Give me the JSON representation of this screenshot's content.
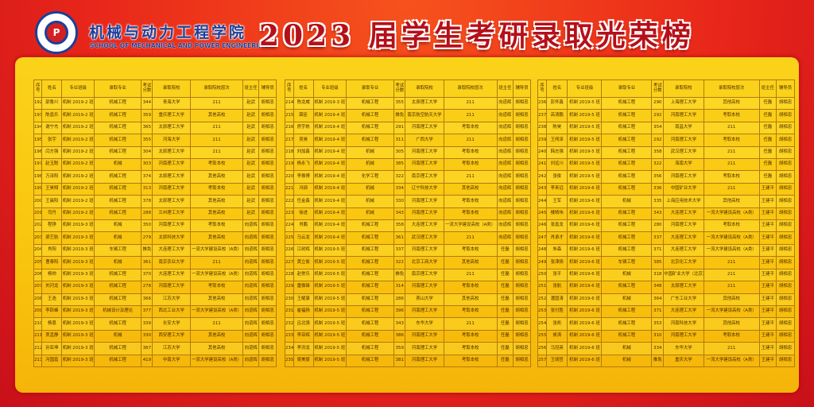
{
  "header": {
    "school_cn": "机械与动力工程学院",
    "school_en": "SCHOOL OF MECHANICAL AND POWER ENGINEERING",
    "title": "2023 届学生考研录取光荣榜",
    "logo_text": "机械与动力工程学院"
  },
  "colors": {
    "background": "#e8261a",
    "panel": "#fbd21a",
    "title": "#b5101a",
    "school_name": "#1b3f9a"
  },
  "columns": [
    "序号",
    "姓名",
    "专业班级",
    "录取专业",
    "考试分数",
    "录取院校",
    "录取院校层次",
    "班主任",
    "辅导员"
  ],
  "tables": [
    [
      [
        "192",
        "邵鲁川",
        "机制 2019-2 班",
        "机械工程",
        "344",
        "青海大学",
        "211",
        "赵武",
        "胡相忠"
      ],
      [
        "193",
        "陈嘉乐",
        "机制 2019-2 班",
        "机械工程",
        "359",
        "重庆理工大学",
        "其他高校",
        "赵武",
        "胡相忠"
      ],
      [
        "194",
        "谢宁杰",
        "机制 2019-2 班",
        "机械工程",
        "365",
        "太原理工大学",
        "211",
        "赵武",
        "胡相忠"
      ],
      [
        "195",
        "张宇",
        "机制 2019-2 班",
        "机械工程",
        "355",
        "河海大学",
        "211",
        "赵武",
        "胡相忠"
      ],
      [
        "196",
        "闫方强",
        "机制 2019-2 班",
        "机械工程",
        "304",
        "太原理工大学",
        "211",
        "赵武",
        "胡相忠"
      ],
      [
        "197",
        "赵玉聪",
        "机制 2019-2 班",
        "机械",
        "303",
        "河南理工大学",
        "考取本校",
        "赵武",
        "胡相忠"
      ],
      [
        "198",
        "万泽阳",
        "机制 2019-2 班",
        "机械工程",
        "374",
        "太原理工大学",
        "其他高校",
        "赵武",
        "胡相忠"
      ],
      [
        "199",
        "王昊翔",
        "机制 2019-2 班",
        "机械工程",
        "313",
        "河南理工大学",
        "考取本校",
        "赵武",
        "胡相忠"
      ],
      [
        "200",
        "王晨阳",
        "机制 2019-2 班",
        "机械工程",
        "378",
        "太原理工大学",
        "其他高校",
        "赵武",
        "胡相忠"
      ],
      [
        "201",
        "司丹",
        "机制 2019-2 班",
        "机械工程",
        "288",
        "兰州理工大学",
        "其他高校",
        "赵武",
        "胡相忠"
      ],
      [
        "202",
        "程铮",
        "机制 2019-3 班",
        "机械",
        "350",
        "河南理工大学",
        "考取本校",
        "向道辉",
        "胡相忠"
      ],
      [
        "203",
        "梁艺航",
        "机制 2019-3 班",
        "机械",
        "279",
        "太原科技大学",
        "其他高校",
        "向道辉",
        "胡相忠"
      ],
      [
        "204",
        "肖阳",
        "机制 2019-3 班",
        "车辆工程",
        "推免",
        "大连理工大学",
        "一流大学建设高校（A类）",
        "向道辉",
        "胡相忠"
      ],
      [
        "205",
        "曹泰阳",
        "机制 2019-3 班",
        "机械",
        "361",
        "南京农业大学",
        "211",
        "向道辉",
        "胡相忠"
      ],
      [
        "206",
        "杨帅",
        "机制 2019-3 班",
        "机械工程",
        "370",
        "大连理工大学",
        "一流大学建设高校（A类）",
        "向道辉",
        "胡相忠"
      ],
      [
        "207",
        "刘河龙",
        "机制 2019-3 班",
        "机械工程",
        "278",
        "河南理工大学",
        "考取本校",
        "向道辉",
        "胡相忠"
      ],
      [
        "208",
        "王浩",
        "机制 2019-3 班",
        "机械工程",
        "366",
        "江苏大学",
        "其他高校",
        "向道辉",
        "胡相忠"
      ],
      [
        "209",
        "李跃峰",
        "机制 2019-3 班",
        "机械设计及理论",
        "377",
        "西北工业大学",
        "一流大学建设高校（A类）",
        "向道辉",
        "胡相忠"
      ],
      [
        "210",
        "杨恩",
        "机制 2019-3 班",
        "机械工程",
        "339",
        "长安大学",
        "211",
        "向道辉",
        "胡相忠"
      ],
      [
        "211",
        "贾孟静",
        "机制 2019-3 班",
        "机械",
        "330",
        "西安理工大学",
        "其他高校",
        "向道辉",
        "胡相忠"
      ],
      [
        "212",
        "孙亚坤",
        "机制 2019-3 班",
        "机械工程",
        "367",
        "江苏大学",
        "其他高校",
        "向道辉",
        "胡相忠"
      ],
      [
        "213",
        "冯国嘉",
        "机制 2019-3 班",
        "机械工程",
        "419",
        "中南大学",
        "一流大学建设高校（A类）",
        "向道辉",
        "胡相忠"
      ]
    ],
    [
      [
        "214",
        "陈龙威",
        "机制 2019-3 班",
        "机械工程",
        "355",
        "太原理工大学",
        "211",
        "向道辉",
        "胡相忠"
      ],
      [
        "215",
        "薛臣",
        "机制 2019-4 班",
        "机械工程",
        "推免",
        "南京航空航天大学",
        "211",
        "向道辉",
        "胡相忠"
      ],
      [
        "216",
        "房宇栋",
        "机制 2019-4 班",
        "机械工程",
        "291",
        "河南理工大学",
        "考取本校",
        "向道辉",
        "胡相忠"
      ],
      [
        "217",
        "吴昊",
        "机制 2019-4 班",
        "机械工程",
        "311",
        "广西大学",
        "211",
        "向道辉",
        "胡相忠"
      ],
      [
        "218",
        "刘加鑫",
        "机制 2019-4 班",
        "机械",
        "305",
        "河南理工大学",
        "考取本校",
        "向道辉",
        "胡相忠"
      ],
      [
        "219",
        "杨永飞",
        "机制 2019-4 班",
        "机械",
        "385",
        "河南理工大学",
        "考取本校",
        "向道辉",
        "胡相忠"
      ],
      [
        "220",
        "李振博",
        "机制 2019-4 班",
        "化学工程",
        "322",
        "南京理工大学",
        "211",
        "向道辉",
        "胡相忠"
      ],
      [
        "221",
        "冯硕",
        "机制 2019-4 班",
        "机械",
        "334",
        "辽宁科技大学",
        "其他高校",
        "向道辉",
        "胡相忠"
      ],
      [
        "222",
        "任金鑫",
        "机制 2019-4 班",
        "机械",
        "330",
        "河南理工大学",
        "考取本校",
        "向道辉",
        "胡相忠"
      ],
      [
        "223",
        "徐进",
        "机制 2019-4 班",
        "机械",
        "343",
        "河南理工大学",
        "考取本校",
        "向道辉",
        "胡相忠"
      ],
      [
        "224",
        "肖鹏",
        "机制 2019-4 班",
        "机械工程",
        "358",
        "大连理工大学",
        "一流大学建设高校（A类）",
        "向道辉",
        "胡相忠"
      ],
      [
        "225",
        "马云龙",
        "机制 2019-4 班",
        "机械工程",
        "361",
        "武汉理工大学",
        "211",
        "向道辉",
        "胡相忠"
      ],
      [
        "226",
        "江树辉",
        "机制 2019-5 班",
        "机械工程",
        "337",
        "河南理工大学",
        "考取本校",
        "任磊",
        "胡相忠"
      ],
      [
        "227",
        "黄立俊",
        "机制 2019-5 班",
        "机械工程",
        "322",
        "北京工商大学",
        "其他高校",
        "任磊",
        "胡相忠"
      ],
      [
        "228",
        "赵常乐",
        "机制 2019-5 班",
        "机械工程",
        "推免",
        "南京理工大学",
        "211",
        "任磊",
        "胡相忠"
      ],
      [
        "229",
        "雷振锋",
        "机制 2019-5 班",
        "机械工程",
        "314",
        "河南理工大学",
        "考取本校",
        "任磊",
        "胡相忠"
      ],
      [
        "230",
        "王耀康",
        "机制 2019-5 班",
        "机械工程",
        "286",
        "燕山大学",
        "其他高校",
        "任磊",
        "胡相忠"
      ],
      [
        "231",
        "崔福扬",
        "机制 2019-5 班",
        "机械工程",
        "396",
        "河南理工大学",
        "考取本校",
        "任磊",
        "胡相忠"
      ],
      [
        "232",
        "吕北强",
        "机制 2019-5 班",
        "机械工程",
        "343",
        "东华大学",
        "211",
        "任磊",
        "胡相忠"
      ],
      [
        "233",
        "李亚辉",
        "机制 2019-5 班",
        "机械工程",
        "386",
        "河南理工大学",
        "考取本校",
        "任磊",
        "胡相忠"
      ],
      [
        "234",
        "李洪龙",
        "机制 2019-5 班",
        "机械工程",
        "359",
        "河南理工大学",
        "考取本校",
        "任磊",
        "胡相忠"
      ],
      [
        "235",
        "梁美豪",
        "机制 2019-5 班",
        "机械工程",
        "381",
        "河南理工大学",
        "考取本校",
        "任磊",
        "胡相忠"
      ]
    ],
    [
      [
        "236",
        "彭怀鑫",
        "机制 2019-5 班",
        "机械工程",
        "290",
        "上海理工大学",
        "其他高校",
        "任磊",
        "胡相忠"
      ],
      [
        "237",
        "高清鹏",
        "机制 2019-5 班",
        "机械工程",
        "292",
        "河南理工大学",
        "考取本校",
        "任磊",
        "胡相忠"
      ],
      [
        "238",
        "陈昊",
        "机制 2019-5 班",
        "机械工程",
        "354",
        "南昌大学",
        "211",
        "任磊",
        "胡相忠"
      ],
      [
        "239",
        "王闯泽",
        "机制 2019-5 班",
        "机械工程",
        "292",
        "河南理工大学",
        "考取本校",
        "任磊",
        "胡相忠"
      ],
      [
        "240",
        "韩志强",
        "机制 2019-5 班",
        "机械工程",
        "358",
        "武汉理工大学",
        "211",
        "任磊",
        "胡相忠"
      ],
      [
        "241",
        "刘远川",
        "机制 2019-5 班",
        "机械工程",
        "322",
        "海南大学",
        "211",
        "任磊",
        "胡相忠"
      ],
      [
        "242",
        "张俊",
        "机制 2019-5 班",
        "机械工程",
        "356",
        "河南理工大学",
        "考取本校",
        "任磊",
        "胡相忠"
      ],
      [
        "243",
        "李来远",
        "机制 2019-6 班",
        "机械工程",
        "336",
        "中国矿业大学",
        "211",
        "王建平",
        "胡相忠"
      ],
      [
        "244",
        "王军",
        "机制 2019-6 班",
        "机械",
        "335",
        "上海应用技术大学",
        "其他高校",
        "王建平",
        "胡相忠"
      ],
      [
        "245",
        "楼晴伟",
        "机制 2019-6 班",
        "机械工程",
        "343",
        "大连理工大学",
        "一流大学建设高校（A类）",
        "王建平",
        "胡相忠"
      ],
      [
        "246",
        "张嘉龙",
        "机制 2019-6 班",
        "机械工程",
        "280",
        "河南理工大学",
        "考取本校",
        "王建平",
        "胡相忠"
      ],
      [
        "247",
        "肖承才",
        "机制 2019-6 班",
        "机械工程",
        "337",
        "大连理工大学",
        "一流大学建设高校（A类）",
        "王建平",
        "胡相忠"
      ],
      [
        "248",
        "朱森",
        "机制 2019-6 班",
        "机械工程",
        "371",
        "大连理工大学",
        "一流大学建设高校（A类）",
        "王建平",
        "胡相忠"
      ],
      [
        "249",
        "张津扬",
        "机制 2019-6 班",
        "车辆工程",
        "385",
        "北京化工大学",
        "211",
        "王建平",
        "胡相忠"
      ],
      [
        "250",
        "张平",
        "机制 2019-6 班",
        "机械",
        "318",
        "中国矿业大学（北京）",
        "211",
        "王建平",
        "胡相忠"
      ],
      [
        "251",
        "张航",
        "机制 2019-6 班",
        "机械工程",
        "348",
        "太原理工大学",
        "211",
        "王建平",
        "胡相忠"
      ],
      [
        "252",
        "潘国涛",
        "机制 2019-6 班",
        "机械",
        "364",
        "广东工业大学",
        "其他高校",
        "王建平",
        "胡相忠"
      ],
      [
        "253",
        "张付胜",
        "机制 2019-6 班",
        "机械工程",
        "371",
        "大连理工大学",
        "一流大学建设高校（A类）",
        "王建平",
        "胡相忠"
      ],
      [
        "254",
        "张凯",
        "机制 2019-6 班",
        "机械工程",
        "353",
        "河南科技大学",
        "其他高校",
        "王建平",
        "胡相忠"
      ],
      [
        "255",
        "侯涛",
        "机制 2019-6 班",
        "机械工程",
        "310",
        "河南理工大学",
        "考取本校",
        "王建平",
        "胡相忠"
      ],
      [
        "256",
        "马冠英",
        "机制 2019-6 班",
        "机械",
        "334",
        "东华大学",
        "211",
        "王建平",
        "胡相忠"
      ],
      [
        "257",
        "王靖哲",
        "机制 2019-6 班",
        "机械",
        "推免",
        "重庆大学",
        "一流大学建设高校（A类）",
        "王建平",
        "胡相忠"
      ]
    ]
  ]
}
